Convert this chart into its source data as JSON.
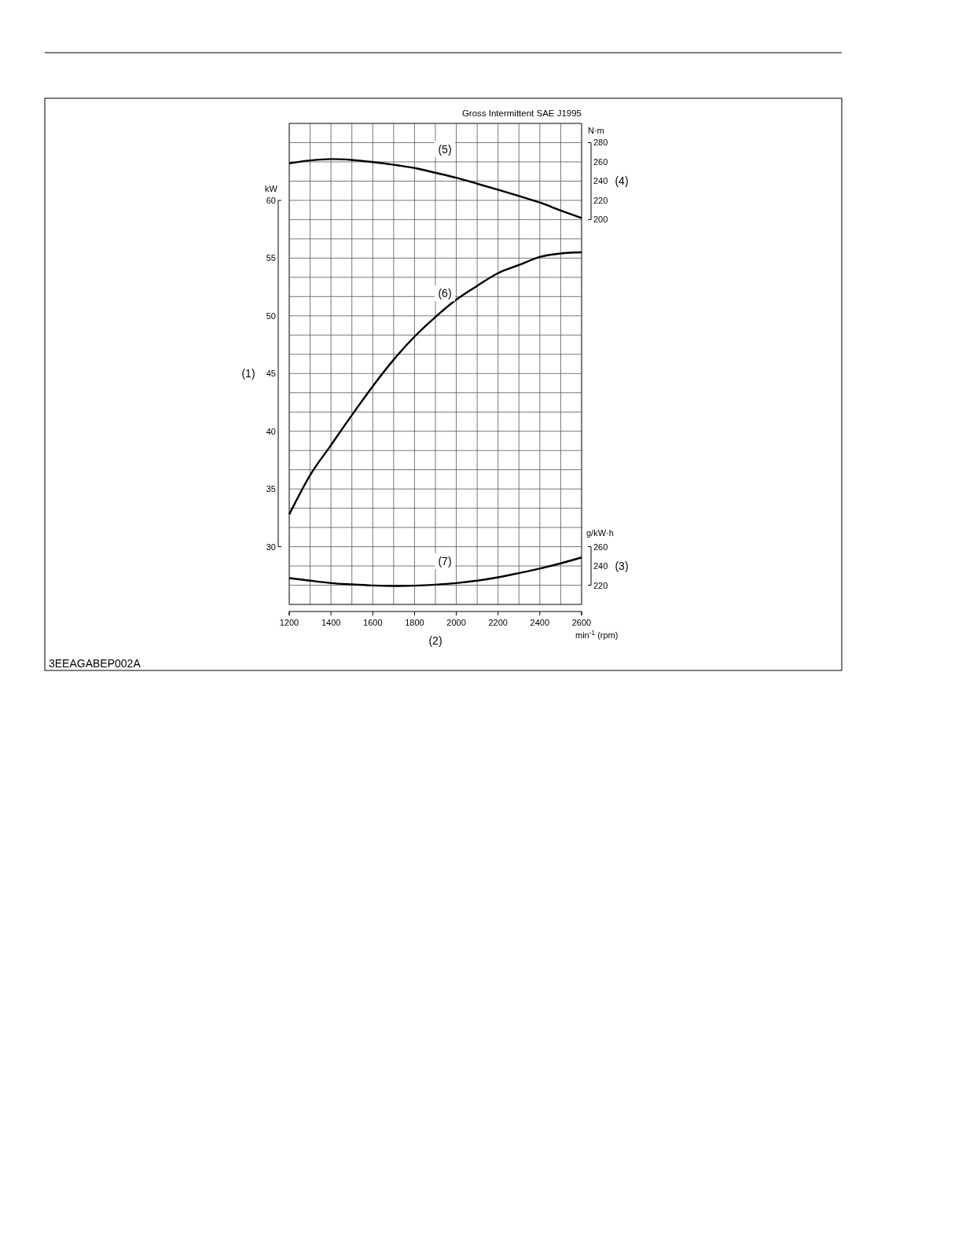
{
  "chart_data": {
    "type": "line",
    "title": "Gross Intermittent SAE J1995",
    "xlabel": "(2)",
    "ylabel": "(1)",
    "y2label": "(4)",
    "y3label": "(3)",
    "annotations": [
      "kW",
      "N·m",
      "g/kW·h",
      "min$^{-1}$ (rpm)",
      "3EEAGABEP002A"
    ],
    "x": [
      1200,
      1300,
      1400,
      1500,
      1600,
      1700,
      1800,
      1900,
      2000,
      2100,
      2200,
      2300,
      2400,
      2500,
      2600
    ],
    "xlim": [
      1200,
      2600
    ],
    "xticks": [
      1200,
      1400,
      1600,
      1800,
      2000,
      2200,
      2400,
      2600
    ],
    "ylim": [
      25,
      66.67
    ],
    "yticks": [
      30,
      35,
      40,
      45,
      50,
      55,
      60
    ],
    "y2lim": [
      -200,
      300
    ],
    "y2ticks": [
      200,
      220,
      240,
      260,
      280
    ],
    "y3lim": [
      200,
      700
    ],
    "y3ticks": [
      220,
      240,
      260
    ],
    "grid": true,
    "series": [
      {
        "name": "(5)",
        "color": "#000000",
        "axis": "y2",
        "values": [
          258.5,
          261.5,
          262.9,
          262,
          259.8,
          257,
          253.6,
          248.7,
          243.5,
          237.3,
          231,
          224.5,
          217.7,
          209.5,
          201.6
        ]
      },
      {
        "name": "(6)",
        "color": "#000000",
        "values": [
          32.8,
          36.2,
          38.8,
          41.4,
          43.9,
          46.2,
          48.2,
          49.9,
          51.4,
          52.6,
          53.7,
          54.4,
          55.1,
          55.4,
          55.5
        ]
      },
      {
        "name": "(7)",
        "color": "#000000",
        "axis": "y3",
        "values": [
          227.4,
          224.7,
          222.2,
          220.8,
          219.7,
          219.2,
          219.5,
          220.5,
          222.2,
          224.7,
          228.2,
          232.6,
          237.3,
          242.7,
          248.8
        ]
      }
    ]
  }
}
